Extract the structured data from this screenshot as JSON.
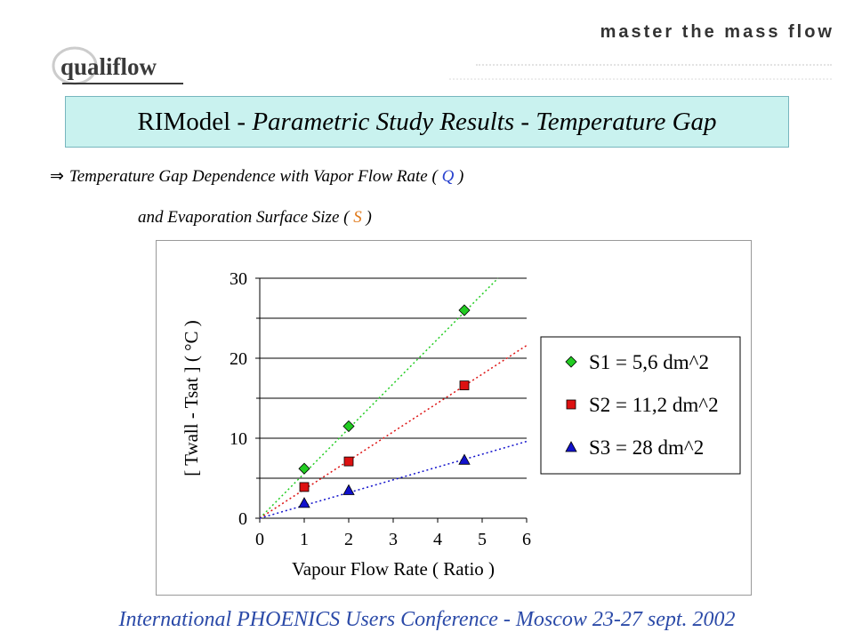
{
  "header": {
    "logo_text": "qualiflow",
    "tagline": "master the mass flow"
  },
  "title": {
    "prefix": "RIModel - ",
    "italic": "Parametric Study Results - Temperature Gap"
  },
  "subtitle": {
    "line1_text": "Temperature Gap Dependence with Vapor Flow Rate (",
    "line1_var": "Q",
    "line1_close": ")",
    "line2_text": "and Evaporation Surface Size (",
    "line2_var": "S",
    "line2_close": ")"
  },
  "chart_data": {
    "type": "scatter",
    "xlabel": "Vapour Flow Rate ( Ratio )",
    "ylabel": "[ Twall - Tsat ] ( °C )",
    "xlim": [
      0,
      6
    ],
    "ylim": [
      0,
      30
    ],
    "xticks": [
      0,
      1,
      2,
      3,
      4,
      5,
      6
    ],
    "yticks": [
      0,
      10,
      20,
      30
    ],
    "grid": "horizontal",
    "legend_position": "right",
    "series": [
      {
        "name": "S1 = 5,6 dm^2",
        "marker": "diamond",
        "color": "#22cc22",
        "trendline_color": "#22cc22",
        "x": [
          1,
          2,
          4.6
        ],
        "y": [
          6.2,
          11.5,
          26.0
        ],
        "trend_slope": 5.6
      },
      {
        "name": "S2 = 11,2 dm^2",
        "marker": "square",
        "color": "#dd1111",
        "trendline_color": "#dd1111",
        "x": [
          1,
          2,
          4.6
        ],
        "y": [
          3.9,
          7.1,
          16.6
        ],
        "trend_slope": 3.6
      },
      {
        "name": "S3 = 28 dm^2",
        "marker": "triangle",
        "color": "#1111cc",
        "trendline_color": "#1111cc",
        "x": [
          1,
          2,
          4.6
        ],
        "y": [
          1.9,
          3.5,
          7.3
        ],
        "trend_slope": 1.6
      }
    ]
  },
  "footer": {
    "text": "International PHOENICS Users Conference - Moscow 23-27 sept. 2002"
  }
}
